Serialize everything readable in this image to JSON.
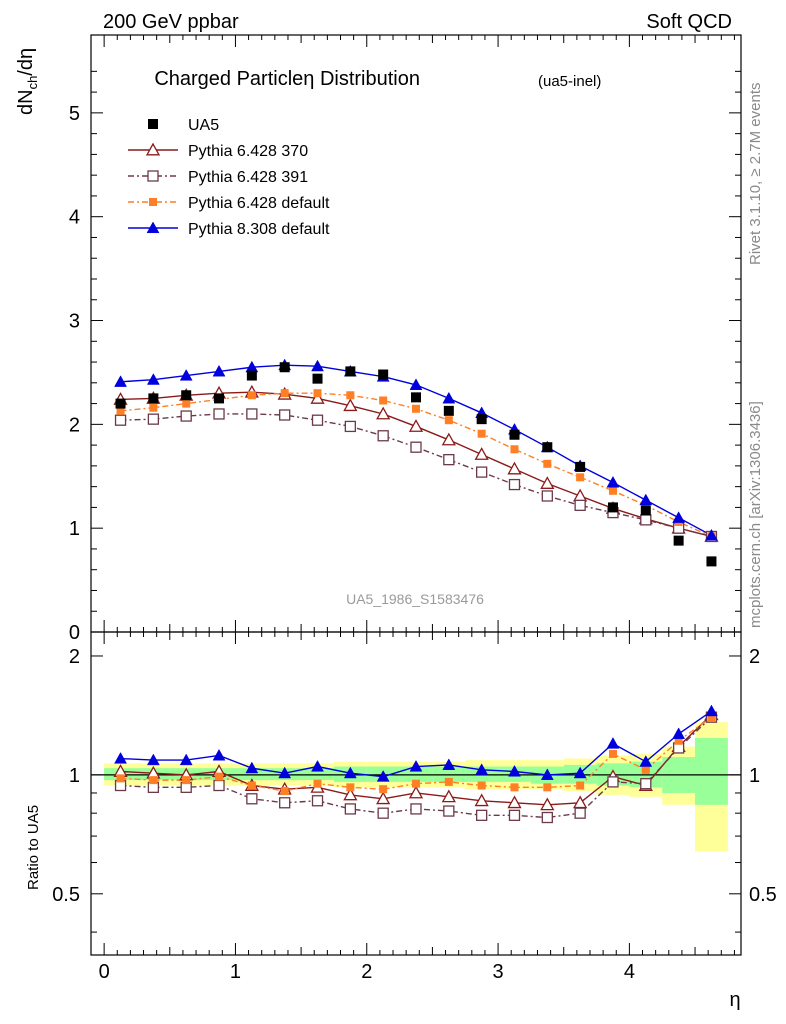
{
  "header": {
    "left_label": "200 GeV ppbar",
    "right_label": "Soft QCD"
  },
  "side_text": {
    "rivet": "Rivet 3.1.10, ≥ 2.7M events",
    "mcplots": "mcplots.cern.ch [arXiv:1306.3436]"
  },
  "chart_data": {
    "type": "scatter",
    "title": "Charged Particleη Distribution",
    "title_suffix": "(ua5-inel)",
    "xlabel": "η",
    "ylabel": "dN",
    "ylabel_sub": "ch",
    "ylabel_tail": "/dη",
    "ratio_ylabel": "Ratio to UA5",
    "analysis_tag": "UA5_1986_S1583476",
    "xlim": [
      -0.1,
      4.85
    ],
    "ylim": [
      0,
      5.75
    ],
    "ratio_ylim": [
      0.35,
      2.3
    ],
    "ratio_log_scale": true,
    "x_ticks": [
      "0",
      "1",
      "2",
      "3",
      "4"
    ],
    "y_ticks": [
      "0",
      "1",
      "2",
      "3",
      "4",
      "5"
    ],
    "ratio_ticks": [
      "0.5",
      "1",
      "2"
    ],
    "legend_position": "top-left",
    "x": [
      0.125,
      0.375,
      0.625,
      0.875,
      1.125,
      1.375,
      1.625,
      1.875,
      2.125,
      2.375,
      2.625,
      2.875,
      3.125,
      3.375,
      3.625,
      3.875,
      4.125,
      4.375,
      4.625
    ],
    "series": [
      {
        "name": "UA5",
        "color": "#000000",
        "marker": "filled-square",
        "line": "none",
        "values": [
          2.2,
          2.25,
          2.28,
          2.25,
          2.47,
          2.55,
          2.44,
          2.51,
          2.48,
          2.26,
          2.13,
          2.05,
          1.9,
          1.78,
          1.59,
          1.2,
          1.17,
          0.88,
          0.68
        ]
      },
      {
        "name": "Pythia 6.428 370",
        "color": "#8b1a1a",
        "marker": "open-triangle",
        "line": "solid",
        "values": [
          2.24,
          2.25,
          2.28,
          2.3,
          2.31,
          2.29,
          2.25,
          2.18,
          2.1,
          1.98,
          1.85,
          1.71,
          1.57,
          1.43,
          1.31,
          1.19,
          1.09,
          1.0,
          0.92
        ]
      },
      {
        "name": "Pythia 6.428 391",
        "color": "#6b3a4a",
        "marker": "open-square",
        "line": "dashdot",
        "values": [
          2.04,
          2.05,
          2.08,
          2.1,
          2.1,
          2.09,
          2.04,
          1.98,
          1.89,
          1.78,
          1.66,
          1.54,
          1.42,
          1.31,
          1.22,
          1.15,
          1.08,
          1.0,
          0.92
        ]
      },
      {
        "name": "Pythia 6.428 default",
        "color": "#ff7f24",
        "marker": "filled-square",
        "line": "dashdot",
        "values": [
          2.13,
          2.16,
          2.2,
          2.24,
          2.28,
          2.3,
          2.3,
          2.28,
          2.23,
          2.15,
          2.04,
          1.91,
          1.76,
          1.62,
          1.49,
          1.36,
          1.22,
          1.06,
          0.92
        ]
      },
      {
        "name": "Pythia 8.308 default",
        "color": "#0000dd",
        "marker": "filled-triangle",
        "line": "solid",
        "values": [
          2.41,
          2.43,
          2.47,
          2.51,
          2.55,
          2.57,
          2.56,
          2.51,
          2.46,
          2.38,
          2.25,
          2.11,
          1.95,
          1.78,
          1.6,
          1.44,
          1.27,
          1.1,
          0.93
        ]
      }
    ],
    "ratio_series": [
      {
        "name": "Pythia 6.428 370",
        "values": [
          1.02,
          1.01,
          1.0,
          1.02,
          0.94,
          0.92,
          0.93,
          0.89,
          0.87,
          0.9,
          0.88,
          0.86,
          0.85,
          0.84,
          0.85,
          0.99,
          0.94,
          1.18,
          1.42
        ]
      },
      {
        "name": "Pythia 6.428 391",
        "values": [
          0.94,
          0.93,
          0.93,
          0.94,
          0.87,
          0.85,
          0.86,
          0.82,
          0.8,
          0.82,
          0.81,
          0.79,
          0.79,
          0.78,
          0.8,
          0.96,
          0.95,
          1.17,
          1.4
        ]
      },
      {
        "name": "Pythia 6.428 default",
        "values": [
          0.98,
          0.97,
          0.97,
          0.99,
          0.94,
          0.91,
          0.95,
          0.93,
          0.92,
          0.95,
          0.96,
          0.94,
          0.93,
          0.93,
          0.94,
          1.13,
          1.03,
          1.22,
          1.4
        ]
      },
      {
        "name": "Pythia 8.308 default",
        "values": [
          1.1,
          1.09,
          1.09,
          1.12,
          1.04,
          1.01,
          1.05,
          1.01,
          0.99,
          1.05,
          1.06,
          1.03,
          1.02,
          1.0,
          1.01,
          1.2,
          1.08,
          1.27,
          1.45
        ]
      }
    ],
    "ratio_band_yellow": [
      [
        0.94,
        1.07
      ],
      [
        0.94,
        1.07
      ],
      [
        0.94,
        1.07
      ],
      [
        0.94,
        1.07
      ],
      [
        0.94,
        1.07
      ],
      [
        0.94,
        1.07
      ],
      [
        0.94,
        1.07
      ],
      [
        0.93,
        1.08
      ],
      [
        0.93,
        1.08
      ],
      [
        0.93,
        1.08
      ],
      [
        0.93,
        1.08
      ],
      [
        0.92,
        1.09
      ],
      [
        0.92,
        1.09
      ],
      [
        0.92,
        1.09
      ],
      [
        0.91,
        1.1
      ],
      [
        0.89,
        1.12
      ],
      [
        0.88,
        1.13
      ],
      [
        0.84,
        1.18
      ],
      [
        0.64,
        1.36
      ]
    ],
    "ratio_band_green": [
      [
        0.97,
        1.04
      ],
      [
        0.97,
        1.04
      ],
      [
        0.97,
        1.04
      ],
      [
        0.97,
        1.04
      ],
      [
        0.97,
        1.04
      ],
      [
        0.97,
        1.04
      ],
      [
        0.97,
        1.04
      ],
      [
        0.96,
        1.05
      ],
      [
        0.96,
        1.05
      ],
      [
        0.96,
        1.05
      ],
      [
        0.96,
        1.05
      ],
      [
        0.96,
        1.05
      ],
      [
        0.96,
        1.05
      ],
      [
        0.95,
        1.05
      ],
      [
        0.95,
        1.06
      ],
      [
        0.94,
        1.07
      ],
      [
        0.93,
        1.08
      ],
      [
        0.9,
        1.11
      ],
      [
        0.84,
        1.24
      ]
    ],
    "colors": {
      "band_yellow": "#ffff99",
      "band_green": "#99ff99"
    }
  }
}
